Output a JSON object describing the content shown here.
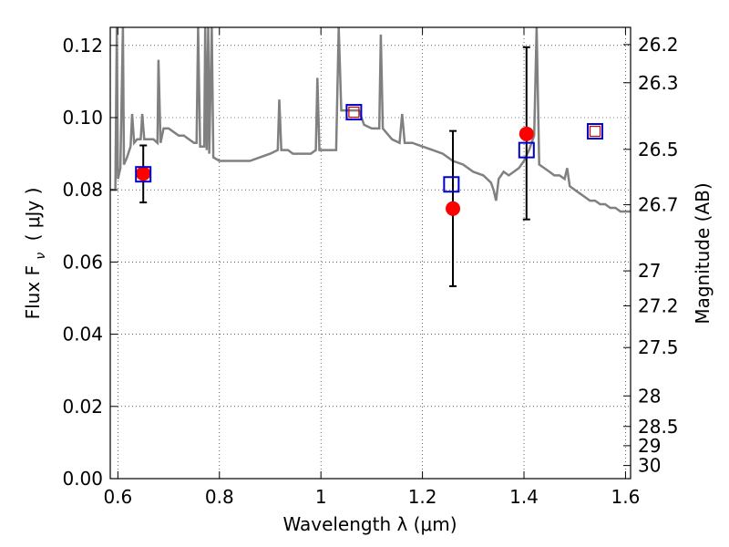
{
  "chart_data": {
    "type": "scatter",
    "xlabel": "Wavelength  λ (μm)",
    "ylabel": "Flux  F",
    "ylabel_sub": "ν",
    "ylabel_unit": "( μJy )",
    "y2label": "Magnitude (AB)",
    "xlim": [
      0.585,
      1.61
    ],
    "ylim": [
      0.0,
      0.125
    ],
    "x_ticks": [
      {
        "v": 0.6,
        "label": "0.6"
      },
      {
        "v": 0.8,
        "label": "0.8"
      },
      {
        "v": 1.0,
        "label": "1"
      },
      {
        "v": 1.2,
        "label": "1.2"
      },
      {
        "v": 1.4,
        "label": "1.4"
      },
      {
        "v": 1.6,
        "label": "1.6"
      }
    ],
    "y_ticks": [
      {
        "v": 0.0,
        "label": "0.00"
      },
      {
        "v": 0.02,
        "label": "0.02"
      },
      {
        "v": 0.04,
        "label": "0.04"
      },
      {
        "v": 0.06,
        "label": "0.06"
      },
      {
        "v": 0.08,
        "label": "0.08"
      },
      {
        "v": 0.1,
        "label": "0.10"
      },
      {
        "v": 0.12,
        "label": "0.12"
      }
    ],
    "mag_ticks": [
      {
        "mag": 26.2,
        "label": "26.2"
      },
      {
        "mag": 26.3,
        "label": "26.3"
      },
      {
        "mag": 26.5,
        "label": "26.5"
      },
      {
        "mag": 26.7,
        "label": "26.7"
      },
      {
        "mag": 27.0,
        "label": "27"
      },
      {
        "mag": 27.2,
        "label": "27.2"
      },
      {
        "mag": 27.5,
        "label": "27.5"
      },
      {
        "mag": 28.0,
        "label": "28"
      },
      {
        "mag": 28.5,
        "label": "28.5"
      },
      {
        "mag": 29.0,
        "label": "29"
      },
      {
        "mag": 30.0,
        "label": "30"
      }
    ],
    "grid": true,
    "colors": {
      "template": "#808080",
      "observed": "#ff0000",
      "model": "#0000cc",
      "model_inner": "#cc0000",
      "errorbar": "#000000"
    },
    "template_spectrum": [
      [
        0.585,
        0.08
      ],
      [
        0.595,
        0.08
      ],
      [
        0.598,
        0.125
      ],
      [
        0.6,
        0.083
      ],
      [
        0.605,
        0.086
      ],
      [
        0.61,
        0.125
      ],
      [
        0.612,
        0.087
      ],
      [
        0.618,
        0.089
      ],
      [
        0.625,
        0.092
      ],
      [
        0.628,
        0.101
      ],
      [
        0.632,
        0.093
      ],
      [
        0.638,
        0.094
      ],
      [
        0.645,
        0.094
      ],
      [
        0.648,
        0.101
      ],
      [
        0.652,
        0.094
      ],
      [
        0.66,
        0.094
      ],
      [
        0.67,
        0.094
      ],
      [
        0.678,
        0.093
      ],
      [
        0.68,
        0.116
      ],
      [
        0.684,
        0.093
      ],
      [
        0.69,
        0.097
      ],
      [
        0.7,
        0.097
      ],
      [
        0.71,
        0.096
      ],
      [
        0.72,
        0.095
      ],
      [
        0.73,
        0.095
      ],
      [
        0.74,
        0.094
      ],
      [
        0.75,
        0.093
      ],
      [
        0.755,
        0.093
      ],
      [
        0.758,
        0.125
      ],
      [
        0.762,
        0.092
      ],
      [
        0.77,
        0.092
      ],
      [
        0.772,
        0.125
      ],
      [
        0.775,
        0.091
      ],
      [
        0.778,
        0.125
      ],
      [
        0.78,
        0.09
      ],
      [
        0.785,
        0.125
      ],
      [
        0.788,
        0.089
      ],
      [
        0.8,
        0.088
      ],
      [
        0.82,
        0.088
      ],
      [
        0.84,
        0.088
      ],
      [
        0.86,
        0.088
      ],
      [
        0.88,
        0.089
      ],
      [
        0.9,
        0.09
      ],
      [
        0.915,
        0.091
      ],
      [
        0.918,
        0.105
      ],
      [
        0.922,
        0.091
      ],
      [
        0.935,
        0.091
      ],
      [
        0.945,
        0.09
      ],
      [
        0.96,
        0.09
      ],
      [
        0.98,
        0.09
      ],
      [
        0.99,
        0.091
      ],
      [
        0.993,
        0.111
      ],
      [
        0.997,
        0.091
      ],
      [
        1.01,
        0.091
      ],
      [
        1.03,
        0.091
      ],
      [
        1.035,
        0.125
      ],
      [
        1.04,
        0.102
      ],
      [
        1.06,
        0.102
      ],
      [
        1.075,
        0.102
      ],
      [
        1.085,
        0.098
      ],
      [
        1.1,
        0.097
      ],
      [
        1.115,
        0.097
      ],
      [
        1.118,
        0.123
      ],
      [
        1.122,
        0.097
      ],
      [
        1.14,
        0.094
      ],
      [
        1.155,
        0.093
      ],
      [
        1.16,
        0.101
      ],
      [
        1.165,
        0.093
      ],
      [
        1.18,
        0.093
      ],
      [
        1.2,
        0.092
      ],
      [
        1.22,
        0.091
      ],
      [
        1.24,
        0.09
      ],
      [
        1.26,
        0.088
      ],
      [
        1.28,
        0.087
      ],
      [
        1.3,
        0.085
      ],
      [
        1.32,
        0.084
      ],
      [
        1.335,
        0.082
      ],
      [
        1.34,
        0.08
      ],
      [
        1.345,
        0.077
      ],
      [
        1.35,
        0.083
      ],
      [
        1.36,
        0.085
      ],
      [
        1.37,
        0.084
      ],
      [
        1.38,
        0.085
      ],
      [
        1.39,
        0.086
      ],
      [
        1.395,
        0.087
      ],
      [
        1.4,
        0.088
      ],
      [
        1.41,
        0.091
      ],
      [
        1.42,
        0.095
      ],
      [
        1.425,
        0.125
      ],
      [
        1.43,
        0.087
      ],
      [
        1.44,
        0.086
      ],
      [
        1.45,
        0.085
      ],
      [
        1.46,
        0.084
      ],
      [
        1.47,
        0.084
      ],
      [
        1.48,
        0.083
      ],
      [
        1.485,
        0.086
      ],
      [
        1.49,
        0.081
      ],
      [
        1.5,
        0.08
      ],
      [
        1.51,
        0.079
      ],
      [
        1.52,
        0.078
      ],
      [
        1.53,
        0.077
      ],
      [
        1.54,
        0.077
      ],
      [
        1.55,
        0.076
      ],
      [
        1.56,
        0.076
      ],
      [
        1.57,
        0.075
      ],
      [
        1.58,
        0.075
      ],
      [
        1.59,
        0.074
      ],
      [
        1.61,
        0.074
      ]
    ],
    "observed_points": [
      {
        "x": 0.65,
        "y": 0.0845,
        "err_lo": 0.0765,
        "err_hi": 0.0923
      },
      {
        "x": 1.26,
        "y": 0.0748,
        "err_lo": 0.0533,
        "err_hi": 0.0963
      },
      {
        "x": 1.405,
        "y": 0.0955,
        "err_lo": 0.0718,
        "err_hi": 0.1195
      }
    ],
    "model_points": [
      {
        "x": 0.65,
        "y": 0.0843,
        "inner": false
      },
      {
        "x": 1.065,
        "y": 0.1015,
        "inner": true
      },
      {
        "x": 1.257,
        "y": 0.0815,
        "inner": false
      },
      {
        "x": 1.405,
        "y": 0.091,
        "inner": false
      },
      {
        "x": 1.54,
        "y": 0.0962,
        "inner": true
      }
    ]
  }
}
